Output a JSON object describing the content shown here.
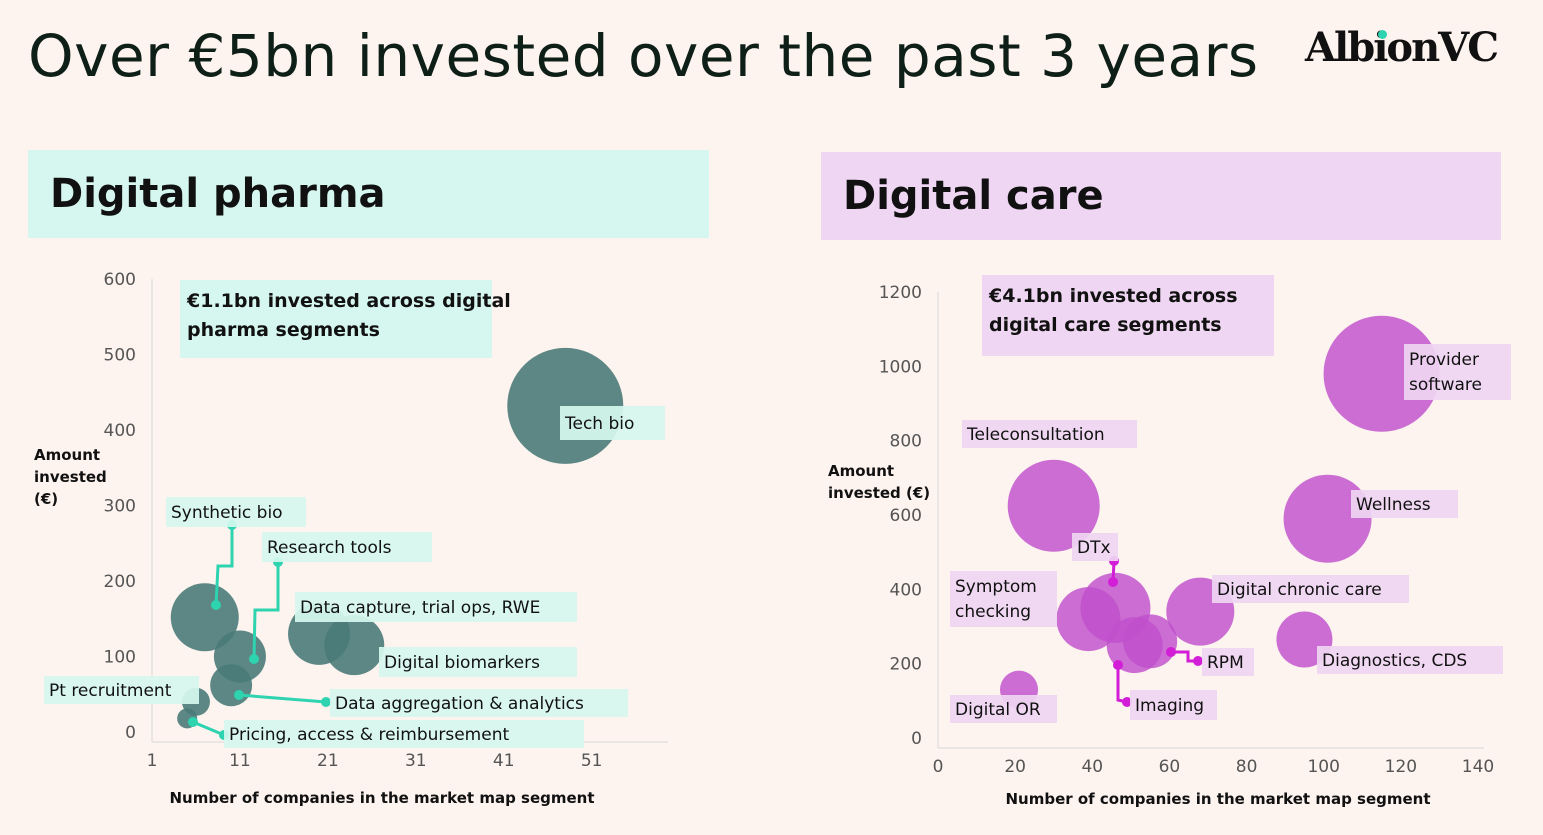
{
  "page": {
    "title": "Over €5bn invested over the past 3 years",
    "logo": "AlbionVC"
  },
  "colors": {
    "background": "#fdf3ef",
    "pharma_bubble": "#4a7b78",
    "pharma_accent": "#2ed3b0",
    "pharma_label_bg": "#d6f7ef",
    "care_bubble": "#bf4fcc",
    "care_accent": "#d21ed6",
    "care_label_bg": "#efd6f2"
  },
  "chart_data": [
    {
      "type": "scatter",
      "title": "Digital pharma",
      "callout_lines": [
        "€1.1bn invested across digital",
        "pharma segments"
      ],
      "ylabel_lines": [
        "Amount",
        "invested",
        "(€)"
      ],
      "xlabel": "Number of companies in the market map segment",
      "xlim": [
        1,
        59
      ],
      "ylim": [
        0,
        600
      ],
      "xticks": [
        1,
        11,
        21,
        31,
        41,
        51
      ],
      "yticks": [
        0,
        100,
        200,
        300,
        400,
        500,
        600
      ],
      "points": [
        {
          "name": "Tech bio",
          "x": 48,
          "y": 432
        },
        {
          "name": "Synthetic bio",
          "x": 7,
          "y": 152
        },
        {
          "name": "Research tools",
          "x": 11,
          "y": 100
        },
        {
          "name": "Data capture, trial ops, RWE",
          "x": 20,
          "y": 130
        },
        {
          "name": "Digital biomarkers",
          "x": 24,
          "y": 115
        },
        {
          "name": "Data aggregation & analytics",
          "x": 10,
          "y": 62
        },
        {
          "name": "Pt recruitment",
          "x": 6,
          "y": 40
        },
        {
          "name": "Pricing, access & reimbursement",
          "x": 5,
          "y": 18
        }
      ]
    },
    {
      "type": "scatter",
      "title": "Digital care",
      "callout_lines": [
        "€4.1bn invested across",
        "digital care segments"
      ],
      "ylabel_lines": [
        "Amount",
        "invested (€)"
      ],
      "xlabel": "Number of companies in the market map segment",
      "xlim": [
        0,
        140
      ],
      "ylim": [
        0,
        1200
      ],
      "xticks": [
        0,
        20,
        40,
        60,
        80,
        100,
        120,
        140
      ],
      "yticks": [
        0,
        200,
        400,
        600,
        800,
        1000,
        1200
      ],
      "points": [
        {
          "name": "Provider software",
          "x": 115,
          "y": 980
        },
        {
          "name": "Wellness",
          "x": 101,
          "y": 590
        },
        {
          "name": "Teleconsultation",
          "x": 30,
          "y": 625
        },
        {
          "name": "Digital chronic care",
          "x": 68,
          "y": 340
        },
        {
          "name": "Diagnostics, CDS",
          "x": 95,
          "y": 265
        },
        {
          "name": "Symptom checking",
          "x": 39,
          "y": 320
        },
        {
          "name": "DTx",
          "x": 46,
          "y": 350
        },
        {
          "name": "RPM",
          "x": 55,
          "y": 260
        },
        {
          "name": "Imaging",
          "x": 51,
          "y": 250
        },
        {
          "name": "Digital OR",
          "x": 21,
          "y": 130
        }
      ]
    }
  ]
}
